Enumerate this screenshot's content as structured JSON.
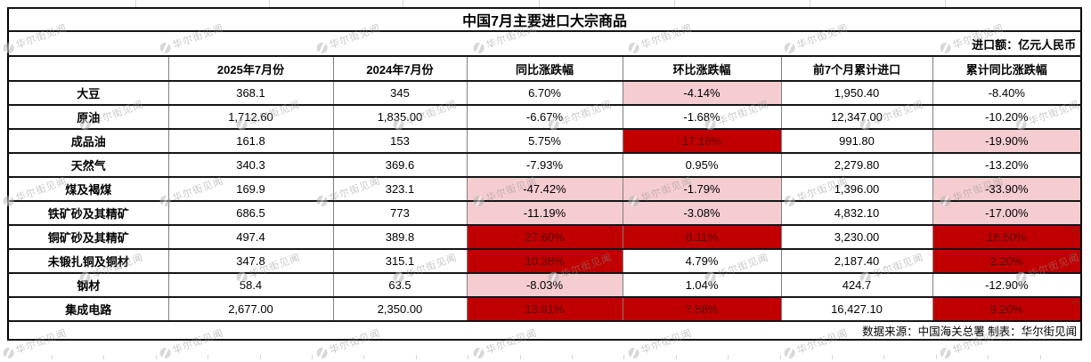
{
  "title": "中国7月主要进口大宗商品",
  "unit_note": "进口额：亿元人民币",
  "footer": "数据来源：中国海关总署 制表：华尔街见闻",
  "watermark_text": "华尔街见闻",
  "colors": {
    "highlight_red_bg": "#C00000",
    "highlight_red_text": "#5A0000",
    "highlight_pink_bg": "#F5CDD1",
    "border": "#000000"
  },
  "chart_data": {
    "type": "table",
    "title": "中国7月主要进口大宗商品",
    "unit": "亿元人民币",
    "columns": [
      "",
      "2025年7月份",
      "2024年7月份",
      "同比涨跌幅",
      "环比涨跌幅",
      "前7个月累计进口",
      "累计同比涨跌幅"
    ],
    "rows": [
      {
        "name": "大豆",
        "values": [
          "368.1",
          "345",
          "6.70%",
          "-4.14%",
          "1,950.40",
          "-8.40%"
        ],
        "highlights": [
          "none",
          "none",
          "none",
          "pink",
          "none",
          "none"
        ]
      },
      {
        "name": "原油",
        "values": [
          "1,712.60",
          "1,835.00",
          "-6.67%",
          "-1.68%",
          "12,347.00",
          "-10.20%"
        ],
        "highlights": [
          "none",
          "none",
          "none",
          "none",
          "none",
          "none"
        ]
      },
      {
        "name": "成品油",
        "values": [
          "161.8",
          "153",
          "5.75%",
          "17.16%",
          "991.80",
          "-19.90%"
        ],
        "highlights": [
          "none",
          "none",
          "none",
          "red",
          "none",
          "pink"
        ]
      },
      {
        "name": "天然气",
        "values": [
          "340.3",
          "369.6",
          "-7.93%",
          "0.95%",
          "2,279.80",
          "-13.20%"
        ],
        "highlights": [
          "none",
          "none",
          "none",
          "none",
          "none",
          "none"
        ]
      },
      {
        "name": "煤及褐煤",
        "values": [
          "169.9",
          "323.1",
          "-47.42%",
          "-1.79%",
          "1,396.00",
          "-33.90%"
        ],
        "highlights": [
          "none",
          "none",
          "pink",
          "pink",
          "none",
          "pink"
        ]
      },
      {
        "name": "铁矿砂及其精矿",
        "values": [
          "686.5",
          "773",
          "-11.19%",
          "-3.08%",
          "4,832.10",
          "-17.00%"
        ],
        "highlights": [
          "none",
          "none",
          "pink",
          "pink",
          "none",
          "pink"
        ]
      },
      {
        "name": "铜矿砂及其精矿",
        "values": [
          "497.4",
          "389.8",
          "27.60%",
          "8.11%",
          "3,230.00",
          "18.50%"
        ],
        "highlights": [
          "none",
          "none",
          "red",
          "red",
          "none",
          "red"
        ]
      },
      {
        "name": "未锻扎铜及铜材",
        "values": [
          "347.8",
          "315.1",
          "10.38%",
          "4.79%",
          "2,187.40",
          "2.20%"
        ],
        "highlights": [
          "none",
          "none",
          "red",
          "none",
          "none",
          "red"
        ]
      },
      {
        "name": "钢材",
        "values": [
          "58.4",
          "63.5",
          "-8.03%",
          "1.04%",
          "424.7",
          "-12.90%"
        ],
        "highlights": [
          "none",
          "none",
          "pink",
          "none",
          "none",
          "none"
        ]
      },
      {
        "name": "集成电路",
        "values": [
          "2,677.00",
          "2,350.00",
          "13.91%",
          "7.58%",
          "16,427.10",
          "9.20%"
        ],
        "highlights": [
          "none",
          "none",
          "red",
          "red",
          "none",
          "red"
        ]
      }
    ]
  }
}
